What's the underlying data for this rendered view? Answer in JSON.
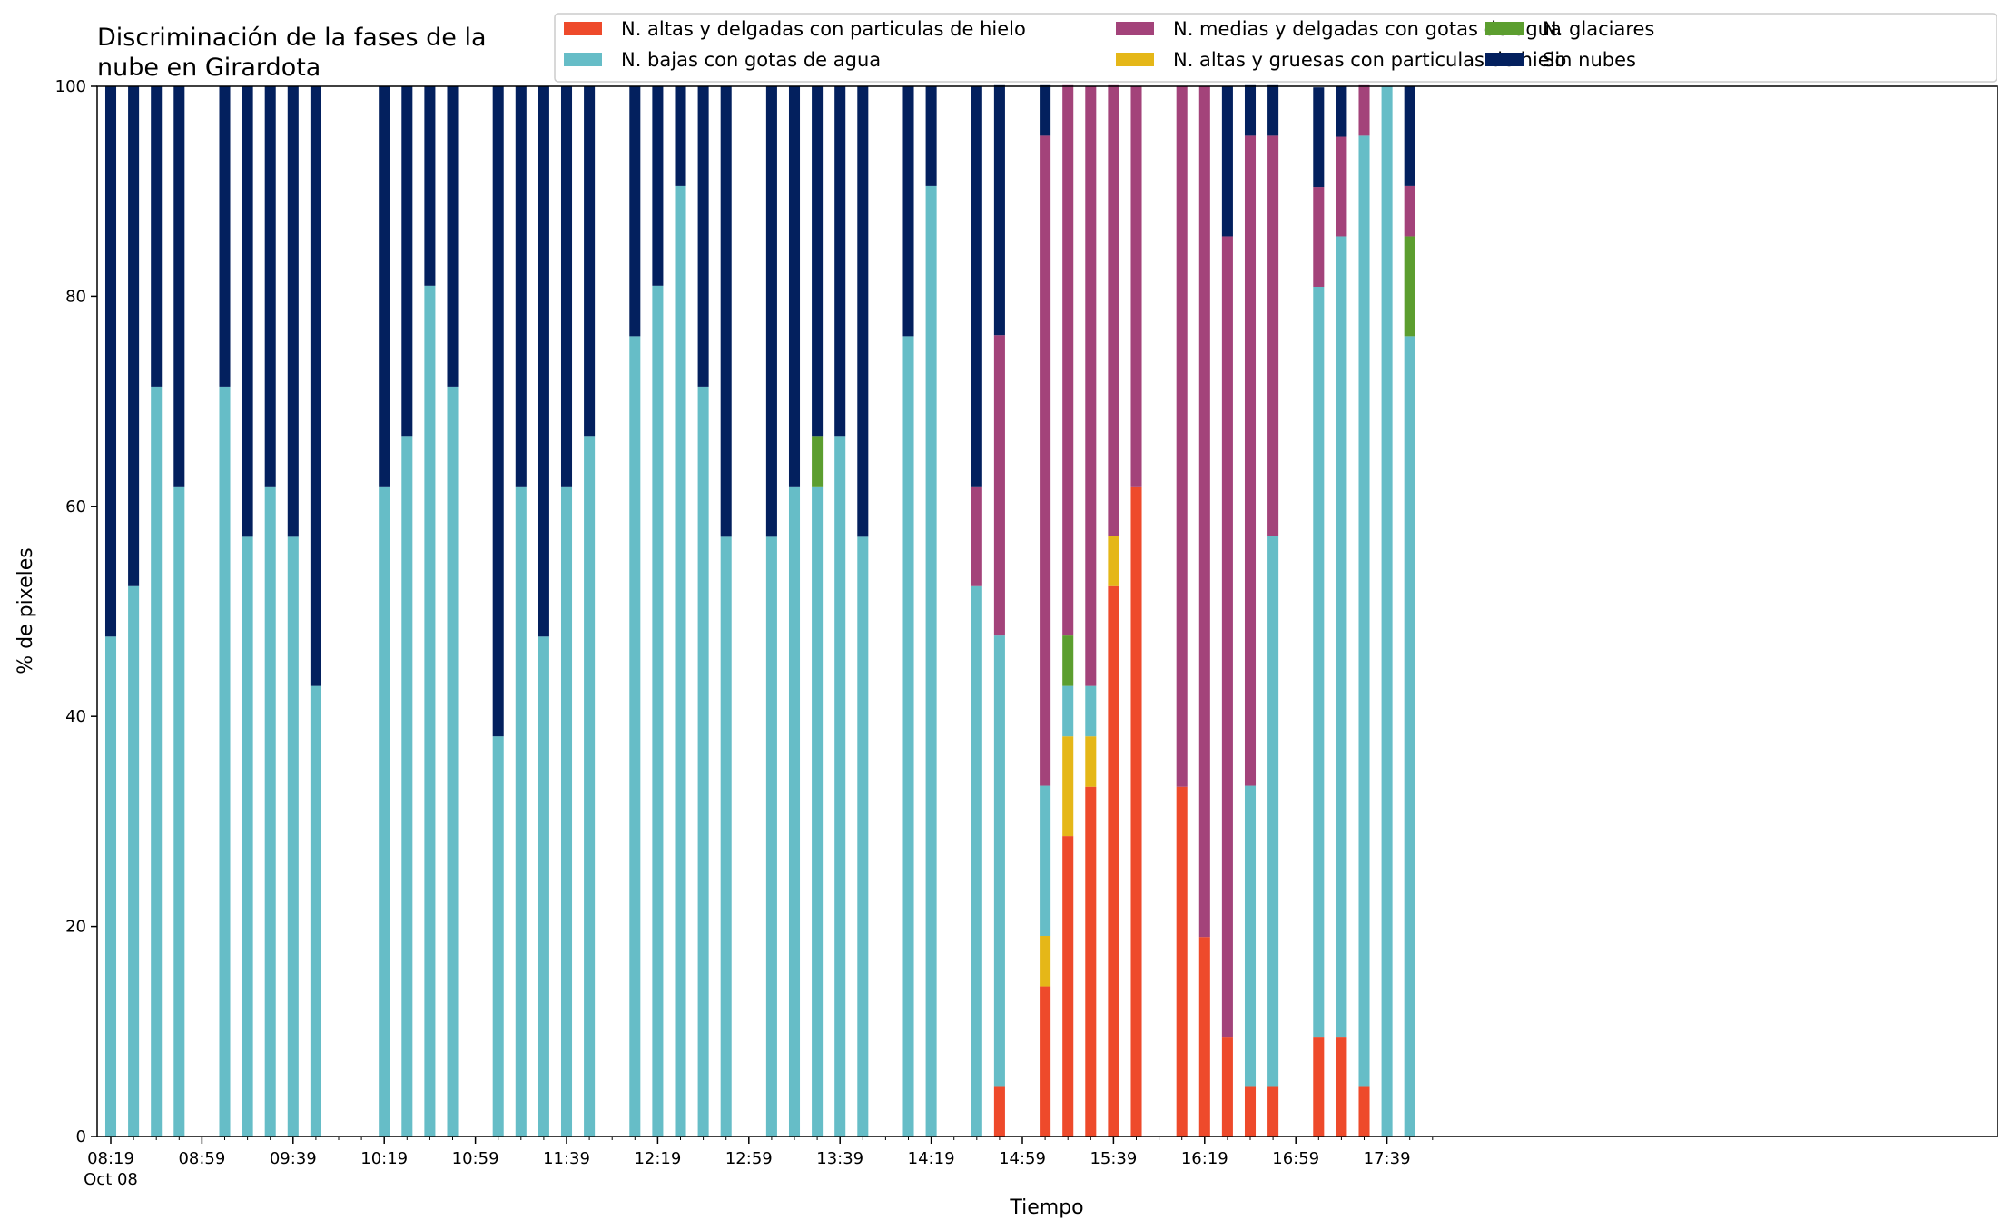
{
  "chart_data": {
    "type": "bar",
    "stacked": true,
    "title_lines": [
      "Discriminación de la fases de la",
      "nube en Girardota"
    ],
    "xlabel": "Tiempo",
    "ylabel": "% de pixeles",
    "ylim": [
      0,
      100
    ],
    "yticks": [
      "0",
      "20",
      "40",
      "60",
      "80",
      "100"
    ],
    "grid": false,
    "legend_position": "top-right",
    "x_start_minutes": 499,
    "x_end_minutes": 1069,
    "bar_width_minutes": 4.8,
    "xticks": [
      {
        "minutes": 499,
        "label": "08:19",
        "sublabel": "Oct 08"
      },
      {
        "minutes": 539,
        "label": "08:59"
      },
      {
        "minutes": 579,
        "label": "09:39"
      },
      {
        "minutes": 619,
        "label": "10:19"
      },
      {
        "minutes": 659,
        "label": "10:59"
      },
      {
        "minutes": 699,
        "label": "11:39"
      },
      {
        "minutes": 739,
        "label": "12:19"
      },
      {
        "minutes": 779,
        "label": "12:59"
      },
      {
        "minutes": 819,
        "label": "13:39"
      },
      {
        "minutes": 859,
        "label": "14:19"
      },
      {
        "minutes": 899,
        "label": "14:59"
      },
      {
        "minutes": 939,
        "label": "15:39"
      },
      {
        "minutes": 979,
        "label": "16:19"
      },
      {
        "minutes": 1019,
        "label": "16:59"
      },
      {
        "minutes": 1059,
        "label": "17:39"
      }
    ],
    "series": [
      {
        "name": "N. altas y delgadas con particulas de hielo",
        "color": "#ee4a2b"
      },
      {
        "name": "N. altas y gruesas con particulas de hielo",
        "color": "#e5b718"
      },
      {
        "name": "N. bajas con gotas de agua",
        "color": "#66bdc7"
      },
      {
        "name": "N. glaciares",
        "color": "#5c9e2f"
      },
      {
        "name": "N. medias y delgadas con gotas de agua",
        "color": "#a3437a"
      },
      {
        "name": "Sin nubes",
        "color": "#03205e"
      }
    ],
    "legend_order": [
      0,
      2,
      4,
      1,
      3,
      5
    ],
    "bars": [
      {
        "time": "08:19",
        "minutes": 499,
        "values": [
          0,
          0,
          47.6,
          0,
          0,
          52.4
        ]
      },
      {
        "time": "08:29",
        "minutes": 509,
        "values": [
          0,
          0,
          52.4,
          0,
          0,
          47.6
        ]
      },
      {
        "time": "08:39",
        "minutes": 519,
        "values": [
          0,
          0,
          71.4,
          0,
          0,
          28.6
        ]
      },
      {
        "time": "08:49",
        "minutes": 529,
        "values": [
          0,
          0,
          61.9,
          0,
          0,
          38.1
        ]
      },
      {
        "time": "09:09",
        "minutes": 549,
        "values": [
          0,
          0,
          71.4,
          0,
          0,
          28.6
        ]
      },
      {
        "time": "09:19",
        "minutes": 559,
        "values": [
          0,
          0,
          57.1,
          0,
          0,
          42.9
        ]
      },
      {
        "time": "09:29",
        "minutes": 569,
        "values": [
          0,
          0,
          61.9,
          0,
          0,
          38.1
        ]
      },
      {
        "time": "09:39",
        "minutes": 579,
        "values": [
          0,
          0,
          57.1,
          0,
          0,
          42.9
        ]
      },
      {
        "time": "09:49",
        "minutes": 589,
        "values": [
          0,
          0,
          42.9,
          0,
          0,
          57.1
        ]
      },
      {
        "time": "10:19",
        "minutes": 619,
        "values": [
          0,
          0,
          61.9,
          0,
          0,
          38.1
        ]
      },
      {
        "time": "10:29",
        "minutes": 629,
        "values": [
          0,
          0,
          66.7,
          0,
          0,
          33.3
        ]
      },
      {
        "time": "10:39",
        "minutes": 639,
        "values": [
          0,
          0,
          81.0,
          0,
          0,
          19.0
        ]
      },
      {
        "time": "10:49",
        "minutes": 649,
        "values": [
          0,
          0,
          71.4,
          0,
          0,
          28.6
        ]
      },
      {
        "time": "11:09",
        "minutes": 669,
        "values": [
          0,
          0,
          38.1,
          0,
          0,
          61.9
        ]
      },
      {
        "time": "11:19",
        "minutes": 679,
        "values": [
          0,
          0,
          61.9,
          0,
          0,
          38.1
        ]
      },
      {
        "time": "11:29",
        "minutes": 689,
        "values": [
          0,
          0,
          47.6,
          0,
          0,
          52.4
        ]
      },
      {
        "time": "11:39",
        "minutes": 699,
        "values": [
          0,
          0,
          61.9,
          0,
          0,
          38.1
        ]
      },
      {
        "time": "11:49",
        "minutes": 709,
        "values": [
          0,
          0,
          66.7,
          0,
          0,
          33.3
        ]
      },
      {
        "time": "12:09",
        "minutes": 729,
        "values": [
          0,
          0,
          76.2,
          0,
          0,
          23.8
        ]
      },
      {
        "time": "12:19",
        "minutes": 739,
        "values": [
          0,
          0,
          81.0,
          0,
          0,
          19.0
        ]
      },
      {
        "time": "12:29",
        "minutes": 749,
        "values": [
          0,
          0,
          90.5,
          0,
          0,
          9.5
        ]
      },
      {
        "time": "12:39",
        "minutes": 759,
        "values": [
          0,
          0,
          71.4,
          0,
          0,
          28.6
        ]
      },
      {
        "time": "12:49",
        "minutes": 769,
        "values": [
          0,
          0,
          57.1,
          0,
          0,
          42.9
        ]
      },
      {
        "time": "13:09",
        "minutes": 789,
        "values": [
          0,
          0,
          57.1,
          0,
          0,
          42.9
        ]
      },
      {
        "time": "13:19",
        "minutes": 799,
        "values": [
          0,
          0,
          61.9,
          0,
          0,
          38.1
        ]
      },
      {
        "time": "13:29",
        "minutes": 809,
        "values": [
          0,
          0,
          61.9,
          4.8,
          0,
          33.3
        ]
      },
      {
        "time": "13:39",
        "minutes": 819,
        "values": [
          0,
          0,
          66.7,
          0,
          0,
          33.3
        ]
      },
      {
        "time": "13:49",
        "minutes": 829,
        "values": [
          0,
          0,
          57.1,
          0,
          0,
          42.9
        ]
      },
      {
        "time": "14:09",
        "minutes": 849,
        "values": [
          0,
          0,
          76.2,
          0,
          0,
          23.8
        ]
      },
      {
        "time": "14:19",
        "minutes": 859,
        "values": [
          0,
          0,
          90.5,
          0,
          0,
          9.5
        ]
      },
      {
        "time": "14:39",
        "minutes": 879,
        "values": [
          0,
          0,
          52.4,
          0,
          9.5,
          38.1
        ]
      },
      {
        "time": "14:49",
        "minutes": 889,
        "values": [
          4.8,
          0,
          42.9,
          0,
          28.6,
          23.8
        ]
      },
      {
        "time": "15:09",
        "minutes": 909,
        "values": [
          14.3,
          4.8,
          14.3,
          0,
          61.9,
          4.8
        ]
      },
      {
        "time": "15:19",
        "minutes": 919,
        "values": [
          28.6,
          9.5,
          4.8,
          4.8,
          52.4,
          0
        ]
      },
      {
        "time": "15:29",
        "minutes": 929,
        "values": [
          33.3,
          4.8,
          4.8,
          0,
          57.1,
          0
        ]
      },
      {
        "time": "15:39",
        "minutes": 939,
        "values": [
          52.4,
          4.8,
          0,
          0,
          42.9,
          0
        ]
      },
      {
        "time": "15:49",
        "minutes": 949,
        "values": [
          61.9,
          0,
          0,
          0,
          38.1,
          0
        ]
      },
      {
        "time": "16:09",
        "minutes": 969,
        "values": [
          33.3,
          0,
          0,
          0,
          66.7,
          0
        ]
      },
      {
        "time": "16:19",
        "minutes": 979,
        "values": [
          19.0,
          0,
          0,
          0,
          81.0,
          0
        ]
      },
      {
        "time": "16:29",
        "minutes": 989,
        "values": [
          9.5,
          0,
          0,
          0,
          76.2,
          14.3
        ]
      },
      {
        "time": "16:39",
        "minutes": 999,
        "values": [
          4.8,
          0,
          28.6,
          0,
          61.9,
          4.8
        ]
      },
      {
        "time": "16:49",
        "minutes": 1009,
        "values": [
          4.8,
          0,
          52.4,
          0,
          38.1,
          4.8
        ]
      },
      {
        "time": "17:09",
        "minutes": 1029,
        "values": [
          9.5,
          0,
          71.4,
          0,
          9.5,
          9.5
        ]
      },
      {
        "time": "17:19",
        "minutes": 1039,
        "values": [
          9.5,
          0,
          76.2,
          0,
          9.5,
          4.8
        ]
      },
      {
        "time": "17:29",
        "minutes": 1049,
        "values": [
          4.8,
          0,
          90.5,
          0,
          4.8,
          0
        ]
      },
      {
        "time": "17:39",
        "minutes": 1059,
        "values": [
          0,
          0,
          100,
          0,
          0,
          0
        ]
      },
      {
        "time": "17:49",
        "minutes": 1069,
        "values": [
          0,
          0,
          76.2,
          9.5,
          4.8,
          9.5
        ]
      }
    ]
  }
}
